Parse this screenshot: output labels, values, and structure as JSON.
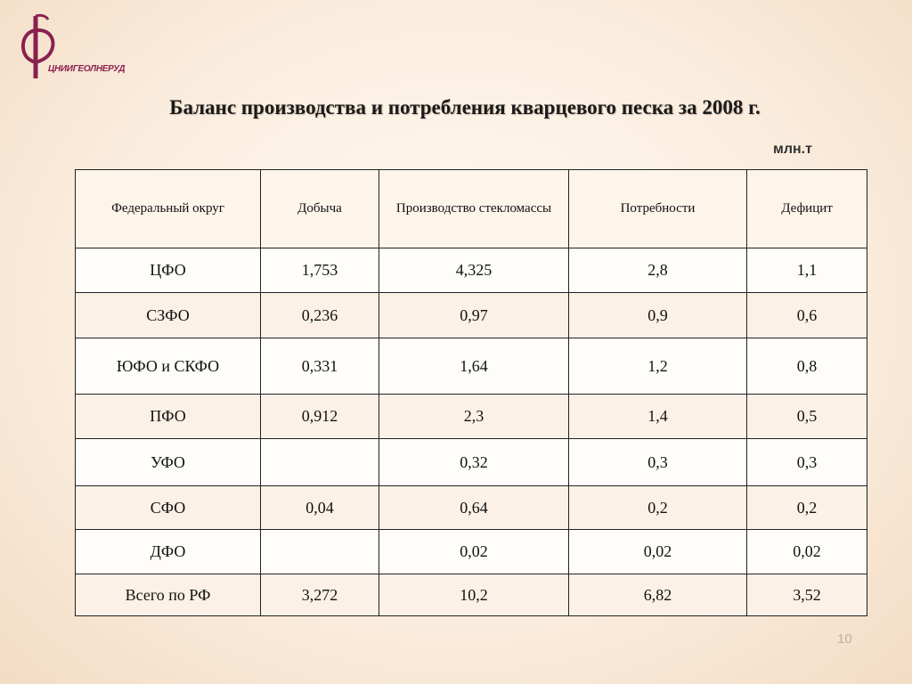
{
  "logo": {
    "text": "ЦНИИГЕОЛНЕРУД",
    "color": "#8a2050"
  },
  "title": "Баланс производства и потребления кварцевого песка за 2008 г.",
  "unit": "млн.т",
  "table": {
    "headers": [
      "Федеральный округ",
      "Добыча",
      "Производство стекломассы",
      "Потребности",
      "Дефицит"
    ],
    "rows": [
      [
        "ЦФО",
        "1,753",
        "4,325",
        "2,8",
        "1,1"
      ],
      [
        "СЗФО",
        "0,236",
        "0,97",
        "0,9",
        "0,6"
      ],
      [
        "ЮФО и СКФО",
        "0,331",
        "1,64",
        "1,2",
        "0,8"
      ],
      [
        "ПФО",
        "0,912",
        "2,3",
        "1,4",
        "0,5"
      ],
      [
        "УФО",
        "",
        "0,32",
        "0,3",
        "0,3"
      ],
      [
        "СФО",
        "0,04",
        "0,64",
        "0,2",
        "0,2"
      ],
      [
        "ДФО",
        "",
        "0,02",
        "0,02",
        "0,02"
      ],
      [
        "Всего по РФ",
        "3,272",
        "10,2",
        "6,82",
        "3,52"
      ]
    ]
  },
  "page_number": "10"
}
